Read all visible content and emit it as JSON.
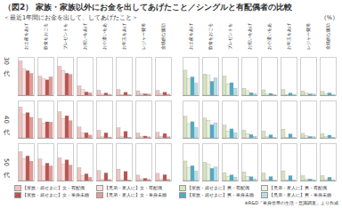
{
  "title": "（図2） 家族・家族以外にお金を出してあげたこと／シングルと有配偶者の比較",
  "subtitle": "＜最近1年間にお金を出して、してあげたこと＞",
  "unit": "（%）",
  "note": "※R&D「単身世帯の生活・意識調査」より作成",
  "chart_data": [
    {
      "type": "bar",
      "title": "30代",
      "categories": [
        "お土産をあげる",
        "飲食をおごる",
        "プレゼントを贈る",
        "お祝いをあげる",
        "お小遣いをあげる",
        "お年玉をあげる",
        "レジャー費等を出す",
        "金銭的な援助"
      ],
      "series": [
        {
          "name": "【家族・親せきに】女・有配偶",
          "color": "#f2c4c0",
          "values": [
            62.6,
            34.7,
            52.7,
            16.9,
            9.3,
            10.6,
            8.1,
            8.7
          ]
        },
        {
          "name": "【兄弟・友人に】女・有配偶",
          "color": "#f9e0dd",
          "values": [
            48.0,
            30.2,
            45.1,
            10.2,
            2.0,
            1.5,
            3.0,
            2.5
          ]
        },
        {
          "name": "【家族・親せきに】女・単身未婚",
          "color": "#c0504d",
          "values": [
            45.0,
            28.0,
            40.2,
            6.0,
            4.0,
            5.2,
            2.5,
            5.5
          ]
        },
        {
          "name": "【兄弟・友人に】女・単身未婚",
          "color": "#e39b96",
          "values": [
            40.0,
            33.5,
            38.0,
            4.5,
            1.5,
            1.0,
            2.0,
            1.8
          ]
        }
      ],
      "ylim": [
        0,
        70
      ],
      "yticks": [
        0
      ],
      "tick_labels": "x",
      "data_labels": false
    },
    {
      "type": "bar",
      "categories": [
        "お土産をあげる",
        "飲食をおごる",
        "プレゼントを贈る",
        "お祝いをあげる",
        "お小遣いをあげる",
        "お年玉をあげる",
        "レジャー費等を出す",
        "金銭的な援助"
      ],
      "series": [
        {
          "name": "【家族・親せきに】男・有配偶",
          "color": "#d7e4bd",
          "values": [
            45.7,
            38.6,
            35.1,
            12.4,
            9.8,
            10.2,
            7.6,
            6.9
          ]
        },
        {
          "name": "【兄弟・友人に】男・有配偶",
          "color": "#ebf1de",
          "values": [
            30.1,
            36.2,
            20.5,
            8.3,
            1.8,
            1.2,
            4.0,
            2.1
          ]
        },
        {
          "name": "【家族・親せきに】男・単身未婚",
          "color": "#4bacc6",
          "values": [
            33.4,
            25.3,
            22.8,
            4.6,
            3.2,
            3.8,
            2.2,
            4.1
          ]
        },
        {
          "name": "【兄弟・友人に】男・単身未婚",
          "color": "#b7dee8",
          "values": [
            22.0,
            31.7,
            12.6,
            3.0,
            0.9,
            0.7,
            2.4,
            1.3
          ]
        }
      ],
      "ylim": [
        0,
        70
      ],
      "yticks": [
        0
      ],
      "tick_labels": "x",
      "data_labels": false
    },
    {
      "type": "bar",
      "title": "40代",
      "categories": [
        "お土産をあげる",
        "飲食をおごる",
        "プレゼントを贈る",
        "お祝いをあげる",
        "お小遣いをあげる",
        "お年玉をあげる",
        "レジャー費等を出す",
        "金銭的な援助"
      ],
      "series": [
        {
          "name": "【家族・親せきに】女・有配偶",
          "color": "#f2c4c0",
          "values": [
            57.6,
            36.3,
            48.8,
            20.4,
            14.2,
            18.7,
            9.0,
            10.3
          ]
        },
        {
          "name": "【兄弟・友人に】女・有配偶",
          "color": "#f9e0dd",
          "values": [
            44.2,
            27.5,
            36.0,
            9.4,
            2.2,
            2.0,
            2.8,
            2.6
          ]
        },
        {
          "name": "【家族・親せきに】女・単身未婚",
          "color": "#c0504d",
          "values": [
            47.3,
            30.1,
            41.5,
            9.8,
            9.5,
            12.1,
            3.4,
            8.2
          ]
        },
        {
          "name": "【兄弟・友人に】女・単身未婚",
          "color": "#e39b96",
          "values": [
            38.5,
            29.4,
            32.2,
            5.2,
            1.6,
            1.1,
            1.9,
            2.0
          ]
        }
      ],
      "ylim": [
        0,
        70
      ],
      "yticks": [
        0
      ],
      "tick_labels": "x",
      "data_labels": false
    },
    {
      "type": "bar",
      "categories": [
        "お土産をあげる",
        "飲食をおごる",
        "プレゼントを贈る",
        "お祝いをあげる",
        "お小遣いをあげる",
        "お年玉をあげる",
        "レジャー費等を出す",
        "金銭的な援助"
      ],
      "series": [
        {
          "name": "【家族・親せきに】男・有配偶",
          "color": "#d7e4bd",
          "values": [
            40.4,
            36.9,
            23.6,
            14.1,
            12.8,
            16.3,
            8.4,
            7.5
          ]
        },
        {
          "name": "【兄弟・友人に】男・有配偶",
          "color": "#ebf1de",
          "values": [
            26.7,
            33.0,
            13.2,
            7.9,
            2.0,
            1.4,
            3.6,
            2.3
          ]
        },
        {
          "name": "【家族・親せきに】男・単身未婚",
          "color": "#4bacc6",
          "values": [
            30.2,
            24.6,
            16.8,
            6.3,
            5.7,
            7.2,
            2.6,
            5.0
          ]
        },
        {
          "name": "【兄弟・友人に】男・単身未婚",
          "color": "#b7dee8",
          "values": [
            19.5,
            28.1,
            9.4,
            3.1,
            0.8,
            0.6,
            2.0,
            1.4
          ]
        }
      ],
      "ylim": [
        0,
        70
      ],
      "yticks": [
        0
      ],
      "tick_labels": "x",
      "data_labels": false
    },
    {
      "type": "bar",
      "title": "50代",
      "categories": [
        "お土産をあげる",
        "飲食をおごる",
        "プレゼントを贈る",
        "お祝いをあげる",
        "お小遣いをあげる",
        "お年玉をあげる",
        "レジャー費等を出す",
        "金銭的な援助"
      ],
      "series": [
        {
          "name": "【家族・親せきに】女・有配偶",
          "color": "#f2c4c0",
          "values": [
            53.8,
            40.3,
            42.5,
            24.1,
            18.6,
            21.4,
            10.2,
            13.5
          ]
        },
        {
          "name": "【兄弟・友人に】女・有配偶",
          "color": "#f9e0dd",
          "values": [
            41.0,
            26.8,
            30.4,
            8.8,
            2.4,
            1.8,
            3.1,
            2.4
          ]
        },
        {
          "name": "【家族・親せきに】女・単身未婚",
          "color": "#c0504d",
          "values": [
            46.2,
            32.5,
            38.7,
            12.6,
            14.3,
            17.0,
            4.2,
            11.0
          ]
        },
        {
          "name": "【兄弟・友人に】女・単身未婚",
          "color": "#e39b96",
          "values": [
            36.4,
            27.2,
            28.9,
            6.0,
            1.9,
            1.3,
            2.2,
            2.1
          ]
        }
      ],
      "ylim": [
        0,
        70
      ],
      "yticks": [
        0
      ],
      "tick_labels": "x",
      "data_labels": false
    },
    {
      "type": "bar",
      "categories": [
        "お土産をあげる",
        "飲食をおごる",
        "プレゼントを贈る",
        "お祝いをあげる",
        "お小遣いをあげる",
        "お年玉をあげる",
        "レジャー費等を出す",
        "金銭的な援助"
      ],
      "series": [
        {
          "name": "【家族・親せきに】男・有配偶",
          "color": "#d7e4bd",
          "values": [
            36.7,
            34.4,
            14.7,
            15.8,
            14.0,
            18.2,
            8.9,
            9.1
          ]
        },
        {
          "name": "【兄弟・友人に】男・有配偶",
          "color": "#ebf1de",
          "values": [
            24.3,
            30.6,
            8.2,
            7.4,
            2.1,
            1.5,
            3.3,
            2.2
          ]
        },
        {
          "name": "【家族・親せきに】男・単身未婚",
          "color": "#4bacc6",
          "values": [
            27.8,
            22.9,
            10.5,
            7.0,
            7.3,
            9.1,
            2.9,
            6.2
          ]
        },
        {
          "name": "【兄弟・友人に】男・単身未婚",
          "color": "#b7dee8",
          "values": [
            17.6,
            25.3,
            6.1,
            3.2,
            0.9,
            0.6,
            1.8,
            1.5
          ]
        }
      ],
      "ylim": [
        0,
        70
      ],
      "yticks": [
        0
      ],
      "tick_labels": "x",
      "data_labels": false
    }
  ]
}
